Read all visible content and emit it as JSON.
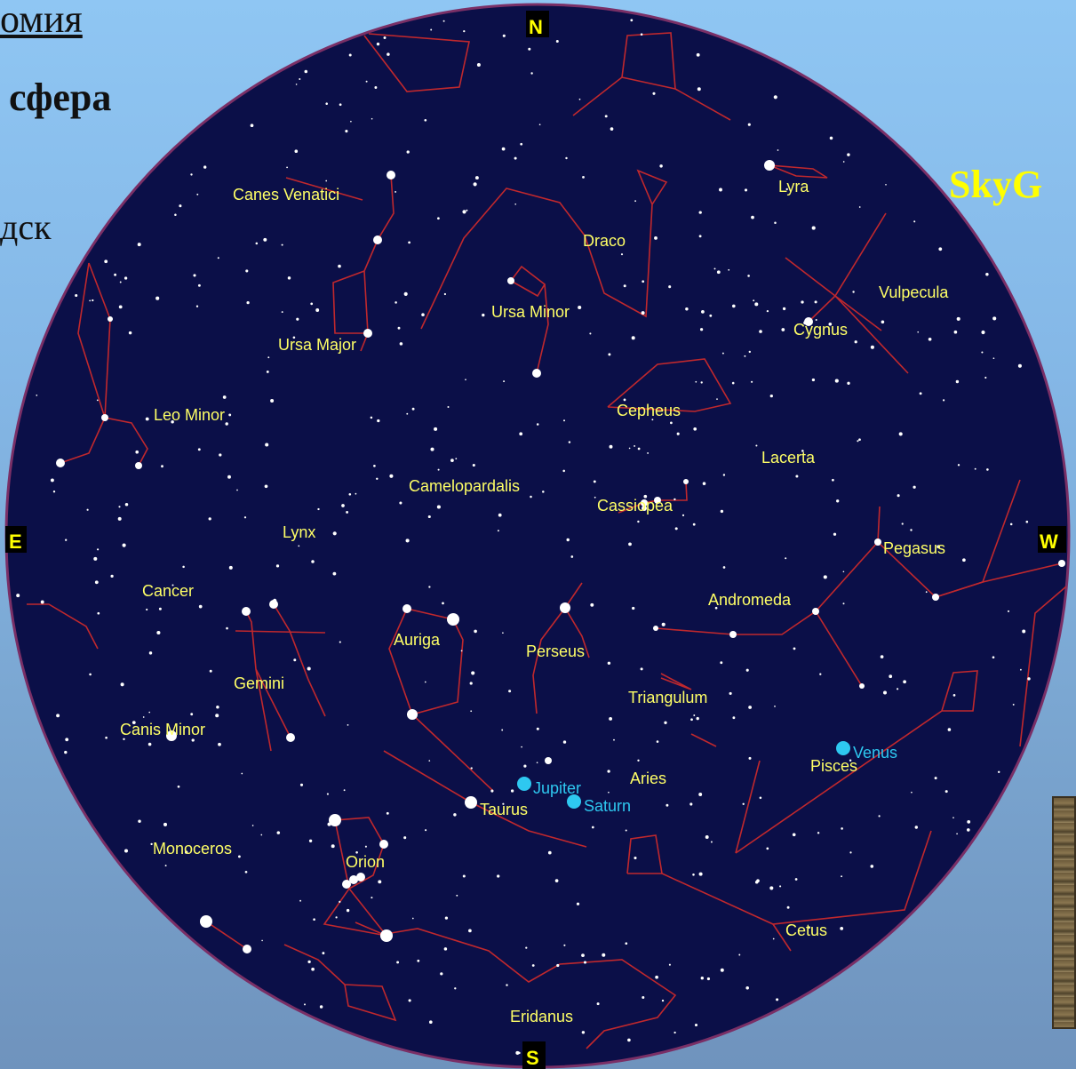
{
  "slide": {
    "title_fragment": "омия",
    "subtitle_fragment": "сфера",
    "left_fragment": "дск",
    "right_fragment": "SkyG"
  },
  "compass": {
    "north": "N",
    "south": "S",
    "east": "E",
    "west": "W"
  },
  "constellations": [
    "Canes Venatici",
    "Lyra",
    "Draco",
    "Ursa Minor",
    "Vulpecula",
    "Cygnus",
    "Ursa Major",
    "Cepheus",
    "Leo Minor",
    "Lacerta",
    "Camelopardalis",
    "Cassiopea",
    "Lynx",
    "Pegasus",
    "Cancer",
    "Andromeda",
    "Auriga",
    "Perseus",
    "Gemini",
    "Triangulum",
    "Canis Minor",
    "Pisces",
    "Aries",
    "Taurus",
    "Monoceros",
    "Orion",
    "Cetus",
    "Eridanus"
  ],
  "planets": [
    "Venus",
    "Jupiter",
    "Saturn"
  ],
  "colors": {
    "sky": "#0b0f48",
    "horizon_border": "#7a2f66",
    "constellation_line": "#c0282d",
    "label": "#ffff66",
    "compass_label": "#ffff00",
    "planet": "#2ec8f0",
    "star": "#ffffff"
  }
}
